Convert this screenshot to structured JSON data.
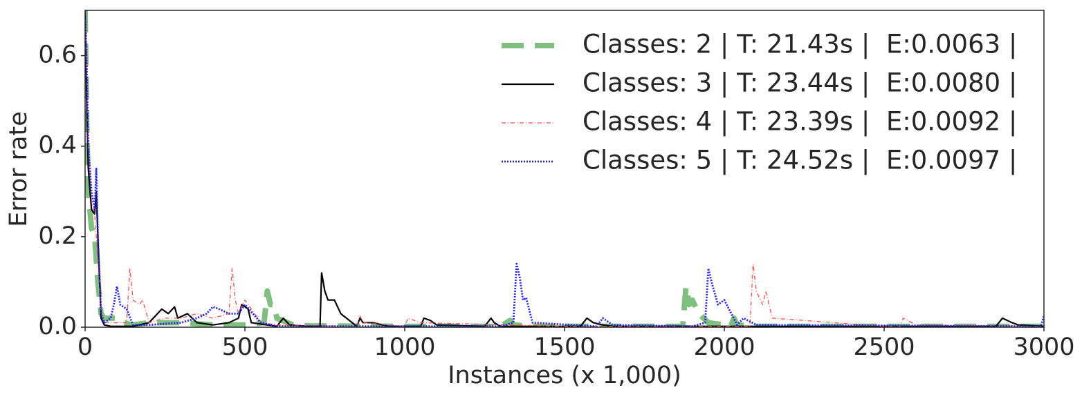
{
  "chart_data": {
    "type": "line",
    "xlabel": "Instances (x 1,000)",
    "ylabel": "Error rate",
    "xlim": [
      0,
      3000
    ],
    "ylim": [
      0,
      0.7
    ],
    "xticks": [
      0,
      500,
      1000,
      1500,
      2000,
      2500,
      3000
    ],
    "yticks": [
      {
        "value": 0,
        "label": "0.0"
      },
      {
        "value": 0.2,
        "label": "0.2"
      },
      {
        "value": 0.4,
        "label": "0.4"
      },
      {
        "value": 0.6,
        "label": "0.6"
      }
    ],
    "legend": "upper right",
    "series": [
      {
        "name": "Classes: 2 | T: 21.43s |  E:0.0063 |",
        "color": "#7fbf7f",
        "linestyle": "dashed",
        "x": [
          0,
          5,
          10,
          20,
          30,
          40,
          50,
          60,
          80,
          100,
          120,
          150,
          200,
          250,
          300,
          400,
          500,
          560,
          570,
          580,
          590,
          600,
          650,
          700,
          1000,
          1300,
          1330,
          1340,
          1400,
          1800,
          1870,
          1880,
          1890,
          1900,
          1920,
          1950,
          2000,
          2020,
          2030,
          2040,
          2100,
          3000
        ],
        "values": [
          0.7,
          0.45,
          0.3,
          0.22,
          0.2,
          0.1,
          0.03,
          0.02,
          0.02,
          0.02,
          0.01,
          0.005,
          0.01,
          0.01,
          0.01,
          0.005,
          0.005,
          0.01,
          0.08,
          0.05,
          0.05,
          0.02,
          0.005,
          0.003,
          0.002,
          0.002,
          0.015,
          0.005,
          0.002,
          0.002,
          0.002,
          0.09,
          0.05,
          0.06,
          0.03,
          0.01,
          0.005,
          0.002,
          0.02,
          0.005,
          0.002,
          0.002
        ]
      },
      {
        "name": "Classes: 3 | T: 23.44s |  E:0.0080 |",
        "color": "#000000",
        "linestyle": "solid",
        "x": [
          0,
          5,
          10,
          20,
          30,
          35,
          40,
          50,
          60,
          80,
          150,
          200,
          240,
          260,
          280,
          290,
          320,
          350,
          400,
          450,
          480,
          490,
          510,
          520,
          600,
          620,
          640,
          700,
          735,
          740,
          750,
          760,
          780,
          800,
          850,
          860,
          870,
          900,
          950,
          1050,
          1060,
          1080,
          1100,
          1250,
          1270,
          1280,
          1300,
          1550,
          1570,
          1590,
          1620,
          1650,
          2850,
          2870,
          2900,
          2920,
          3000
        ],
        "values": [
          0.7,
          0.5,
          0.35,
          0.26,
          0.25,
          0.3,
          0.2,
          0.02,
          0.005,
          0.002,
          0.002,
          0.01,
          0.04,
          0.03,
          0.045,
          0.02,
          0.03,
          0.01,
          0.005,
          0.01,
          0.02,
          0.05,
          0.04,
          0.01,
          0.002,
          0.02,
          0.005,
          0.002,
          0.002,
          0.12,
          0.08,
          0.06,
          0.06,
          0.03,
          0.002,
          0.02,
          0.01,
          0.01,
          0.002,
          0.002,
          0.02,
          0.015,
          0.005,
          0.002,
          0.02,
          0.01,
          0.002,
          0.002,
          0.02,
          0.01,
          0.005,
          0.002,
          0.002,
          0.02,
          0.01,
          0.005,
          0.002
        ]
      },
      {
        "name": "Classes: 4 | T: 23.39s |  E:0.0092 |",
        "color": "#ff4c4c",
        "linestyle": "dashdot",
        "x": [
          0,
          5,
          10,
          20,
          30,
          40,
          50,
          60,
          100,
          130,
          140,
          150,
          170,
          180,
          200,
          250,
          300,
          350,
          400,
          450,
          460,
          470,
          480,
          500,
          550,
          600,
          850,
          860,
          870,
          1000,
          1010,
          1050,
          1500,
          2080,
          2090,
          2100,
          2120,
          2130,
          2150,
          2500,
          2550,
          2560,
          2600,
          3000
        ],
        "values": [
          0.7,
          0.55,
          0.4,
          0.28,
          0.25,
          0.15,
          0.03,
          0.01,
          0.01,
          0.01,
          0.13,
          0.06,
          0.05,
          0.06,
          0.01,
          0.02,
          0.02,
          0.03,
          0.02,
          0.03,
          0.13,
          0.06,
          0.03,
          0.06,
          0.01,
          0.005,
          0.002,
          0.025,
          0.01,
          0.002,
          0.02,
          0.01,
          0.002,
          0.002,
          0.14,
          0.08,
          0.05,
          0.08,
          0.02,
          0.002,
          0.002,
          0.02,
          0.005,
          0.002
        ]
      },
      {
        "name": "Classes: 5 | T: 24.52s |  E:0.0097 |",
        "color": "#2222ee",
        "linestyle": "dotted",
        "x": [
          0,
          5,
          10,
          20,
          30,
          35,
          40,
          50,
          60,
          80,
          90,
          100,
          110,
          130,
          150,
          200,
          300,
          350,
          380,
          400,
          420,
          450,
          480,
          500,
          550,
          600,
          1300,
          1340,
          1350,
          1360,
          1370,
          1380,
          1400,
          1600,
          1620,
          1650,
          1900,
          1940,
          1950,
          1960,
          1980,
          2000,
          2040,
          2060,
          2100,
          2990,
          3000
        ],
        "values": [
          0.7,
          0.58,
          0.4,
          0.3,
          0.26,
          0.35,
          0.2,
          0.03,
          0.01,
          0.02,
          0.05,
          0.09,
          0.05,
          0.04,
          0.005,
          0.005,
          0.01,
          0.02,
          0.03,
          0.045,
          0.04,
          0.03,
          0.03,
          0.05,
          0.01,
          0.002,
          0.002,
          0.01,
          0.14,
          0.11,
          0.06,
          0.065,
          0.01,
          0.002,
          0.02,
          0.005,
          0.002,
          0.01,
          0.13,
          0.1,
          0.05,
          0.06,
          0.005,
          0.02,
          0.005,
          0.002,
          0.025
        ]
      }
    ]
  }
}
